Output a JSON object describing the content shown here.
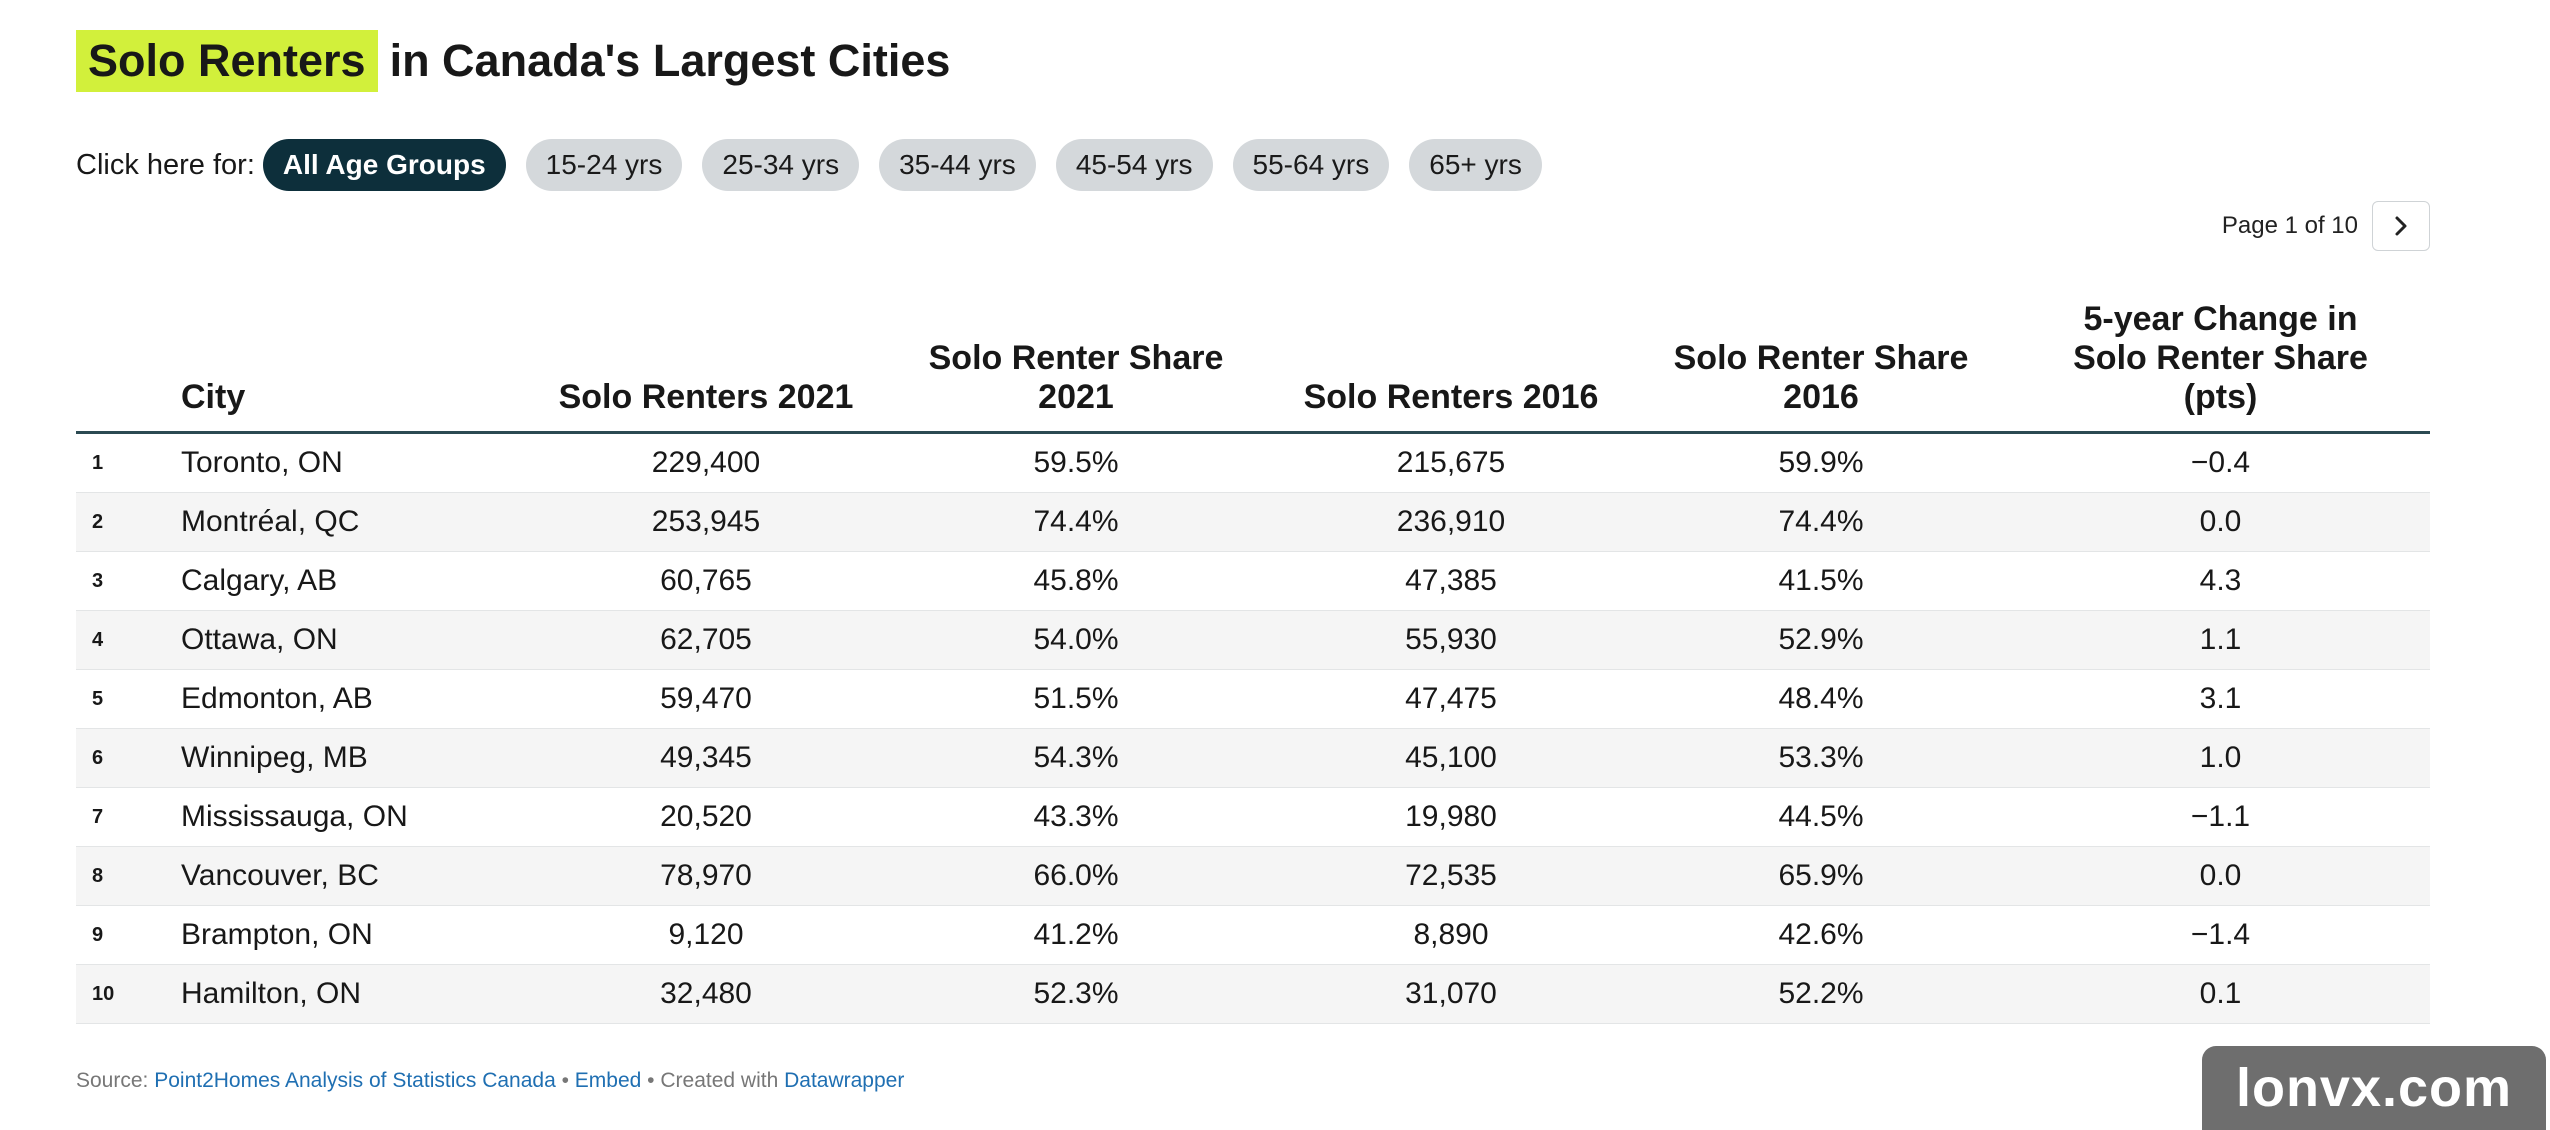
{
  "title": {
    "highlight": "Solo Renters",
    "rest": "in Canada's Largest Cities"
  },
  "filters": {
    "label": "Click here for:",
    "options": [
      "All Age Groups",
      "15-24 yrs",
      "25-34 yrs",
      "35-44 yrs",
      "45-54 yrs",
      "55-64 yrs",
      "65+ yrs"
    ],
    "active": "All Age Groups"
  },
  "pagination": {
    "text": "Page 1 of 10",
    "next_icon": "chevron-right-icon"
  },
  "table": {
    "columns": [
      "",
      "City",
      "Solo Renters 2021",
      "Solo Renter Share 2021",
      "Solo Renters 2016",
      "Solo Renter Share 2016",
      "5-year Change in Solo Renter Share (pts)"
    ],
    "rows": [
      [
        "1",
        "Toronto, ON",
        "229,400",
        "59.5%",
        "215,675",
        "59.9%",
        "−0.4"
      ],
      [
        "2",
        "Montréal, QC",
        "253,945",
        "74.4%",
        "236,910",
        "74.4%",
        "0.0"
      ],
      [
        "3",
        "Calgary, AB",
        "60,765",
        "45.8%",
        "47,385",
        "41.5%",
        "4.3"
      ],
      [
        "4",
        "Ottawa, ON",
        "62,705",
        "54.0%",
        "55,930",
        "52.9%",
        "1.1"
      ],
      [
        "5",
        "Edmonton, AB",
        "59,470",
        "51.5%",
        "47,475",
        "48.4%",
        "3.1"
      ],
      [
        "6",
        "Winnipeg, MB",
        "49,345",
        "54.3%",
        "45,100",
        "53.3%",
        "1.0"
      ],
      [
        "7",
        "Mississauga, ON",
        "20,520",
        "43.3%",
        "19,980",
        "44.5%",
        "−1.1"
      ],
      [
        "8",
        "Vancouver, BC",
        "78,970",
        "66.0%",
        "72,535",
        "65.9%",
        "0.0"
      ],
      [
        "9",
        "Brampton, ON",
        "9,120",
        "41.2%",
        "8,890",
        "42.6%",
        "−1.4"
      ],
      [
        "10",
        "Hamilton, ON",
        "32,480",
        "52.3%",
        "31,070",
        "52.2%",
        "0.1"
      ]
    ]
  },
  "footer": {
    "source_label": "Source: ",
    "source_link": "Point2Homes Analysis of Statistics Canada",
    "sep1": " • ",
    "embed_link": "Embed",
    "sep2": " • Created with ",
    "tool_link": "Datawrapper"
  },
  "watermark": "lonvx.com",
  "colors": {
    "title_highlight": "#d2f03b",
    "pill_active": "#0d2f3b",
    "pill_inactive": "#d4d8db",
    "link": "#1f6fb2",
    "header_rule": "#2b4a52",
    "row_alt": "#f5f5f5"
  }
}
